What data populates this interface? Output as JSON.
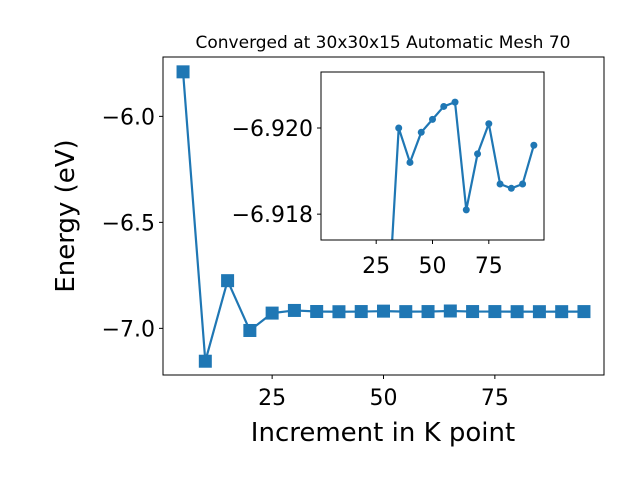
{
  "chart_data": [
    {
      "type": "line",
      "title": "Converged at 30x30x15 Automatic Mesh 70",
      "xlabel": "Increment in K point",
      "ylabel": "Energy (eV)",
      "xlim": [
        0.5,
        99.5
      ],
      "ylim": [
        -7.22,
        -5.72
      ],
      "xticks": [
        25,
        50,
        75
      ],
      "yticks": [
        -6.0,
        -6.5,
        -7.0
      ],
      "xtick_labels": [
        "25",
        "50",
        "75"
      ],
      "ytick_labels": [
        "−6.0",
        "−6.5",
        "−7.0"
      ],
      "marker": "square",
      "color": "#1f77b4",
      "series": [
        {
          "x": [
            5,
            10,
            15,
            20,
            25,
            30,
            35,
            40,
            45,
            50,
            55,
            60,
            65,
            70,
            75,
            80,
            85,
            90,
            95
          ],
          "y": [
            -5.79,
            -7.155,
            -6.775,
            -7.01,
            -6.928,
            -6.9155,
            -6.9205,
            -6.9215,
            -6.9207,
            -6.9188,
            -6.921,
            -6.9208,
            -6.9181,
            -6.9207,
            -6.9208,
            -6.9212,
            -6.9213,
            -6.9212,
            -6.9209
          ]
        }
      ]
    },
    {
      "type": "line",
      "title": "",
      "xlabel": "",
      "ylabel": "",
      "xlim": [
        0.5,
        99.5
      ],
      "ylim": [
        -6.9174,
        -6.9213
      ],
      "xticks": [
        25,
        50,
        75
      ],
      "yticks": [
        -6.92,
        -6.918
      ],
      "xtick_labels": [
        "25",
        "50",
        "75"
      ],
      "ytick_labels": [
        "−6.920",
        "−6.918"
      ],
      "marker": "circle",
      "color": "#1f77b4",
      "series": [
        {
          "x": [
            30,
            35,
            40,
            45,
            50,
            55,
            60,
            65,
            70,
            75,
            80,
            85,
            90,
            95
          ],
          "y": [
            -6.9155,
            -6.92,
            -6.9192,
            -6.9199,
            -6.9202,
            -6.9205,
            -6.9206,
            -6.9181,
            -6.9194,
            -6.9201,
            -6.9187,
            -6.9186,
            -6.9187,
            -6.9196
          ]
        }
      ]
    }
  ]
}
